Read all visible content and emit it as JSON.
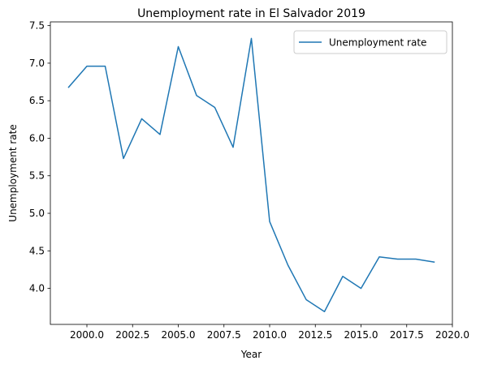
{
  "chart_data": {
    "type": "line",
    "title": "Unemployment rate in El Salvador 2019",
    "xlabel": "Year",
    "ylabel": "Unemployment rate",
    "xlim": [
      1998.0,
      2020.0
    ],
    "ylim": [
      3.52,
      7.55
    ],
    "x_ticks": [
      2000.0,
      2002.5,
      2005.0,
      2007.5,
      2010.0,
      2012.5,
      2015.0,
      2017.5,
      2020.0
    ],
    "x_tick_labels": [
      "2000.0",
      "2002.5",
      "2005.0",
      "2007.5",
      "2010.0",
      "2012.5",
      "2015.0",
      "2017.5",
      "2020.0"
    ],
    "y_ticks": [
      4.0,
      4.5,
      5.0,
      5.5,
      6.0,
      6.5,
      7.0,
      7.5
    ],
    "y_tick_labels": [
      "4.0",
      "4.5",
      "5.0",
      "5.5",
      "6.0",
      "6.5",
      "7.0",
      "7.5"
    ],
    "grid": false,
    "legend_position": "top-right",
    "series": [
      {
        "name": "Unemployment rate",
        "color": "#1f77b4",
        "x": [
          1999,
          2000,
          2001,
          2002,
          2003,
          2004,
          2005,
          2006,
          2007,
          2008,
          2009,
          2010,
          2011,
          2012,
          2013,
          2014,
          2015,
          2016,
          2017,
          2018,
          2019
        ],
        "y": [
          6.68,
          6.96,
          6.96,
          5.73,
          6.26,
          6.05,
          7.22,
          6.57,
          6.41,
          5.88,
          7.33,
          4.89,
          4.31,
          3.85,
          3.69,
          4.16,
          4.0,
          4.42,
          4.39,
          4.39,
          4.35
        ]
      }
    ]
  }
}
